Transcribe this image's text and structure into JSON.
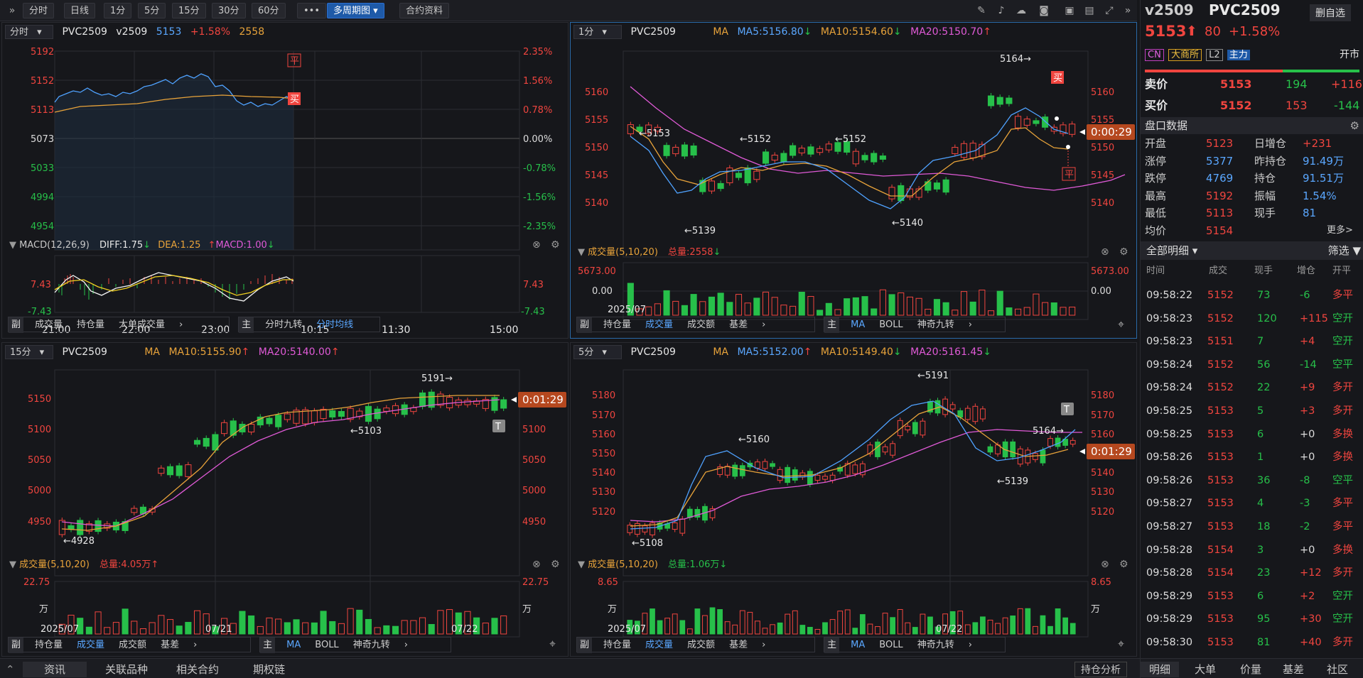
{
  "toolbar": {
    "periods": [
      "分时",
      "日线",
      "1分",
      "5分",
      "15分",
      "30分",
      "60分"
    ],
    "more": "•••",
    "multi": "多周期图",
    "contract": "合约资料"
  },
  "p1": {
    "period": "分时",
    "code": "PVC2509",
    "code2": "v2509",
    "price": "5153",
    "pct": "+1.58%",
    "vol": "2558",
    "y_left": [
      "5192",
      "5152",
      "5113",
      "5073",
      "5033",
      "4994",
      "4954"
    ],
    "y_right": [
      "2.35%",
      "1.56%",
      "0.78%",
      "0.00%",
      "-0.78%",
      "-1.56%",
      "-2.35%"
    ],
    "badge_top": "平",
    "badge_bot": "买",
    "macd": {
      "label": "MACD(12,26,9)",
      "diff": "DIFF:1.75",
      "dea": "DEA:1.25",
      "macd": "MACD:1.00",
      "top": "7.43",
      "bot": "-7.43",
      "rtop": "7.43",
      "rbot": "-7.43"
    },
    "xlabels": [
      "21:00",
      "22:00",
      "23:00",
      "10:15",
      "11:30",
      "15:00"
    ],
    "sub": {
      "tag": "副",
      "items": [
        "成交量",
        "持仓量",
        "大单成交量"
      ]
    },
    "main": {
      "tag": "主",
      "items": [
        "分时九转",
        "分时均线"
      ]
    }
  },
  "p2": {
    "period": "1分",
    "code": "PVC2509",
    "ma": "MA",
    "ma5": "MA5:5156.80",
    "ma10": "MA10:5154.60",
    "ma20": "MA20:5150.70",
    "y": [
      "5160",
      "5155",
      "5150",
      "5145",
      "5140"
    ],
    "yr": [
      "5160",
      "5155",
      "5150",
      "5145",
      "5140"
    ],
    "timer": "0:00:29",
    "ann": [
      "←5153",
      "←5152",
      "←5152",
      "←5139",
      "←5140",
      "5164→"
    ],
    "badge_buy": "买",
    "badge_flat": "平",
    "vol": {
      "label": "成交量(5,10,20)",
      "total": "总量:2558",
      "top": "5673.00",
      "bot": "0.00",
      "rtop": "5673.00",
      "rbot": "0.00"
    },
    "xdate": "2025/07",
    "sub": {
      "tag": "副",
      "items": [
        "持仓量",
        "成交量",
        "成交额",
        "基差"
      ]
    },
    "main": {
      "tag": "主",
      "items": [
        "MA",
        "BOLL",
        "神奇九转"
      ]
    }
  },
  "p3": {
    "period": "15分",
    "code": "PVC2509",
    "ma": "MA",
    "ma10": "MA10:5155.90",
    "ma20": "MA20:5140.00",
    "y": [
      "5150",
      "5100",
      "5050",
      "5000",
      "4950"
    ],
    "yr": [
      "5150",
      "5100",
      "5050",
      "5000",
      "4950"
    ],
    "timer": "0:01:29",
    "ann": [
      "5191→",
      "←5103",
      "←4928"
    ],
    "badge_t": "T",
    "vol": {
      "label": "成交量(5,10,20)",
      "total": "总量:4.05万",
      "top": "22.75",
      "bot": "万",
      "rtop": "22.75",
      "rbot": "万"
    },
    "xlabels": [
      "2025/07",
      "07/21",
      "07/22"
    ],
    "sub": {
      "tag": "副",
      "items": [
        "持仓量",
        "成交量",
        "成交额",
        "基差"
      ]
    },
    "main": {
      "tag": "主",
      "items": [
        "MA",
        "BOLL",
        "神奇九转"
      ]
    }
  },
  "p4": {
    "period": "5分",
    "code": "PVC2509",
    "ma": "MA",
    "ma5": "MA5:5152.00",
    "ma10": "MA10:5149.40",
    "ma20": "MA20:5161.45",
    "y": [
      "5180",
      "5170",
      "5160",
      "5150",
      "5140",
      "5130",
      "5120"
    ],
    "yr": [
      "5180",
      "5170",
      "5160",
      "5150",
      "5140",
      "5130",
      "5120"
    ],
    "timer": "0:01:29",
    "ann": [
      "←5191",
      "←5160",
      "5164→",
      "←5139",
      "←5108"
    ],
    "badge_t": "T",
    "vol": {
      "label": "成交量(5,10,20)",
      "total": "总量:1.06万",
      "top": "8.65",
      "bot": "万",
      "rtop": "8.65",
      "rbot": "万"
    },
    "xlabels": [
      "2025/07",
      "07/22"
    ],
    "sub": {
      "tag": "副",
      "items": [
        "持仓量",
        "成交量",
        "成交额",
        "基差"
      ]
    },
    "main": {
      "tag": "主",
      "items": [
        "MA",
        "BOLL",
        "神奇九转"
      ]
    }
  },
  "right": {
    "code": "v2509",
    "name": "PVC2509",
    "del": "删自选",
    "price": "5153",
    "chg": "80",
    "pct": "+1.58%",
    "tags": [
      "CN",
      "大商所",
      "L2",
      "主力"
    ],
    "open": "开市",
    "sell": {
      "label": "卖价",
      "price": "5153",
      "qty": "194",
      "chg": "+116"
    },
    "buy": {
      "label": "买价",
      "price": "5152",
      "qty": "153",
      "chg": "-144"
    },
    "pankou": "盘口数据",
    "stats": [
      [
        "开盘",
        "5123",
        "日增仓",
        "+231"
      ],
      [
        "涨停",
        "5377",
        "昨持仓",
        "91.49万"
      ],
      [
        "跌停",
        "4769",
        "持仓",
        "91.51万"
      ],
      [
        "最高",
        "5192",
        "振幅",
        "1.54%"
      ],
      [
        "最低",
        "5113",
        "现手",
        "81"
      ],
      [
        "均价",
        "5154",
        "",
        ""
      ]
    ],
    "more": "更多>",
    "detail": "全部明细",
    "filter": "筛选",
    "heads": [
      "时间",
      "成交",
      "现手",
      "增仓",
      "开平"
    ],
    "trades": [
      [
        "09:58:22",
        "5152",
        "73",
        "-6",
        "多平"
      ],
      [
        "09:58:23",
        "5152",
        "120",
        "+115",
        "空开"
      ],
      [
        "09:58:23",
        "5151",
        "7",
        "+4",
        "空开"
      ],
      [
        "09:58:24",
        "5152",
        "56",
        "-14",
        "空平"
      ],
      [
        "09:58:24",
        "5152",
        "22",
        "+9",
        "多开"
      ],
      [
        "09:58:25",
        "5153",
        "5",
        "+3",
        "多开"
      ],
      [
        "09:58:25",
        "5153",
        "6",
        "+0",
        "多换"
      ],
      [
        "09:58:26",
        "5153",
        "1",
        "+0",
        "多换"
      ],
      [
        "09:58:26",
        "5153",
        "36",
        "-8",
        "空平"
      ],
      [
        "09:58:27",
        "5153",
        "4",
        "-3",
        "多平"
      ],
      [
        "09:58:27",
        "5153",
        "18",
        "-2",
        "多平"
      ],
      [
        "09:58:28",
        "5154",
        "3",
        "+0",
        "多换"
      ],
      [
        "09:58:28",
        "5154",
        "23",
        "+12",
        "多开"
      ],
      [
        "09:58:29",
        "5153",
        "6",
        "+2",
        "空开"
      ],
      [
        "09:58:29",
        "5153",
        "95",
        "+30",
        "空开"
      ],
      [
        "09:58:30",
        "5153",
        "81",
        "+40",
        "多开"
      ]
    ],
    "tabs": [
      "明细",
      "大单",
      "价量",
      "基差",
      "社区"
    ]
  },
  "bottom": {
    "tabs": [
      "资讯",
      "关联品种",
      "相关合约",
      "期权链"
    ],
    "pos": "持仓分析"
  }
}
